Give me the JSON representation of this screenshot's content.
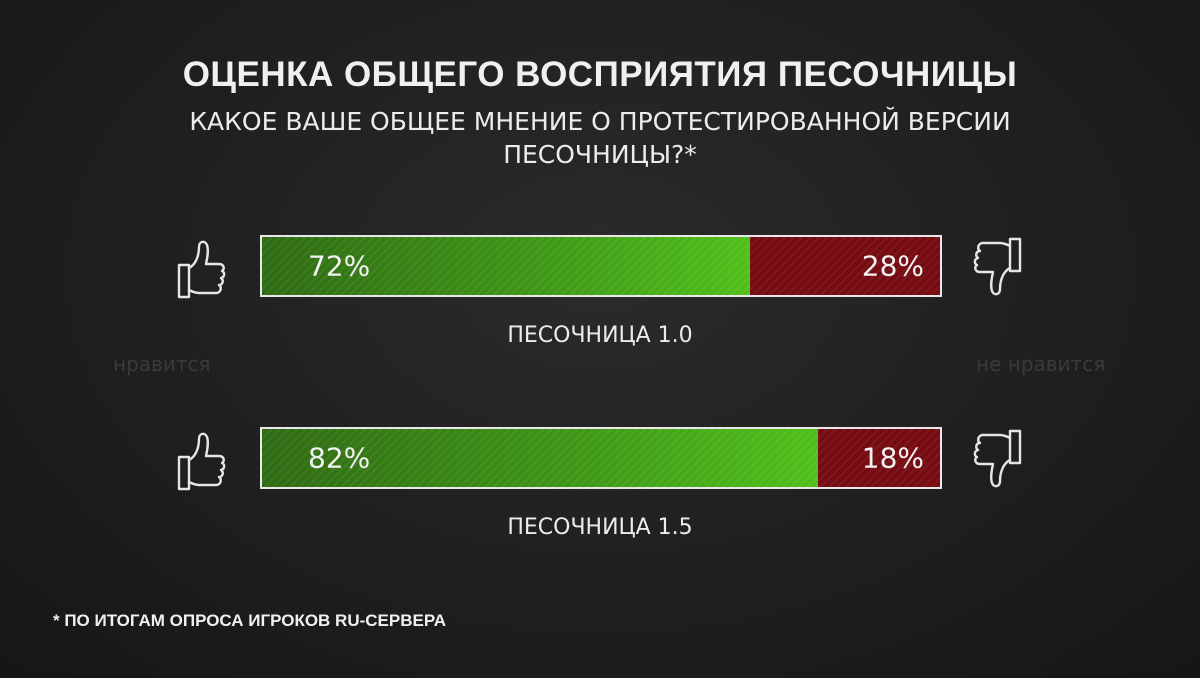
{
  "title": "ОЦЕНКА ОБЩЕГО ВОСПРИЯТИЯ ПЕСОЧНИЦЫ",
  "subtitle": "КАКОЕ ВАШЕ ОБЩЕЕ МНЕНИЕ О ПРОТЕСТИРОВАННОЙ ВЕРСИИ ПЕСОЧНИЦЫ?*",
  "side_labels": {
    "like": "нравится",
    "dislike": "не нравится"
  },
  "footnote": "* ПО ИТОГАМ ОПРОСА ИГРОКОВ RU-СЕРВЕРА",
  "colors": {
    "like": "#3f9a16",
    "dislike": "#760c12",
    "border": "#e8e8e8"
  },
  "icons": {
    "like": "thumbs-up-icon",
    "dislike": "thumbs-down-icon"
  },
  "chart_data": {
    "type": "bar",
    "stacked": true,
    "orientation": "horizontal",
    "title": "ОЦЕНКА ОБЩЕГО ВОСПРИЯТИЯ ПЕСОЧНИЦЫ",
    "categories": [
      "ПЕСОЧНИЦА 1.0",
      "ПЕСОЧНИЦА 1.5"
    ],
    "series": [
      {
        "name": "нравится",
        "values": [
          72,
          82
        ],
        "labels": [
          "72%",
          "82%"
        ]
      },
      {
        "name": "не нравится",
        "values": [
          28,
          18
        ],
        "labels": [
          "28%",
          "18%"
        ]
      }
    ],
    "xlim": [
      0,
      100
    ]
  }
}
